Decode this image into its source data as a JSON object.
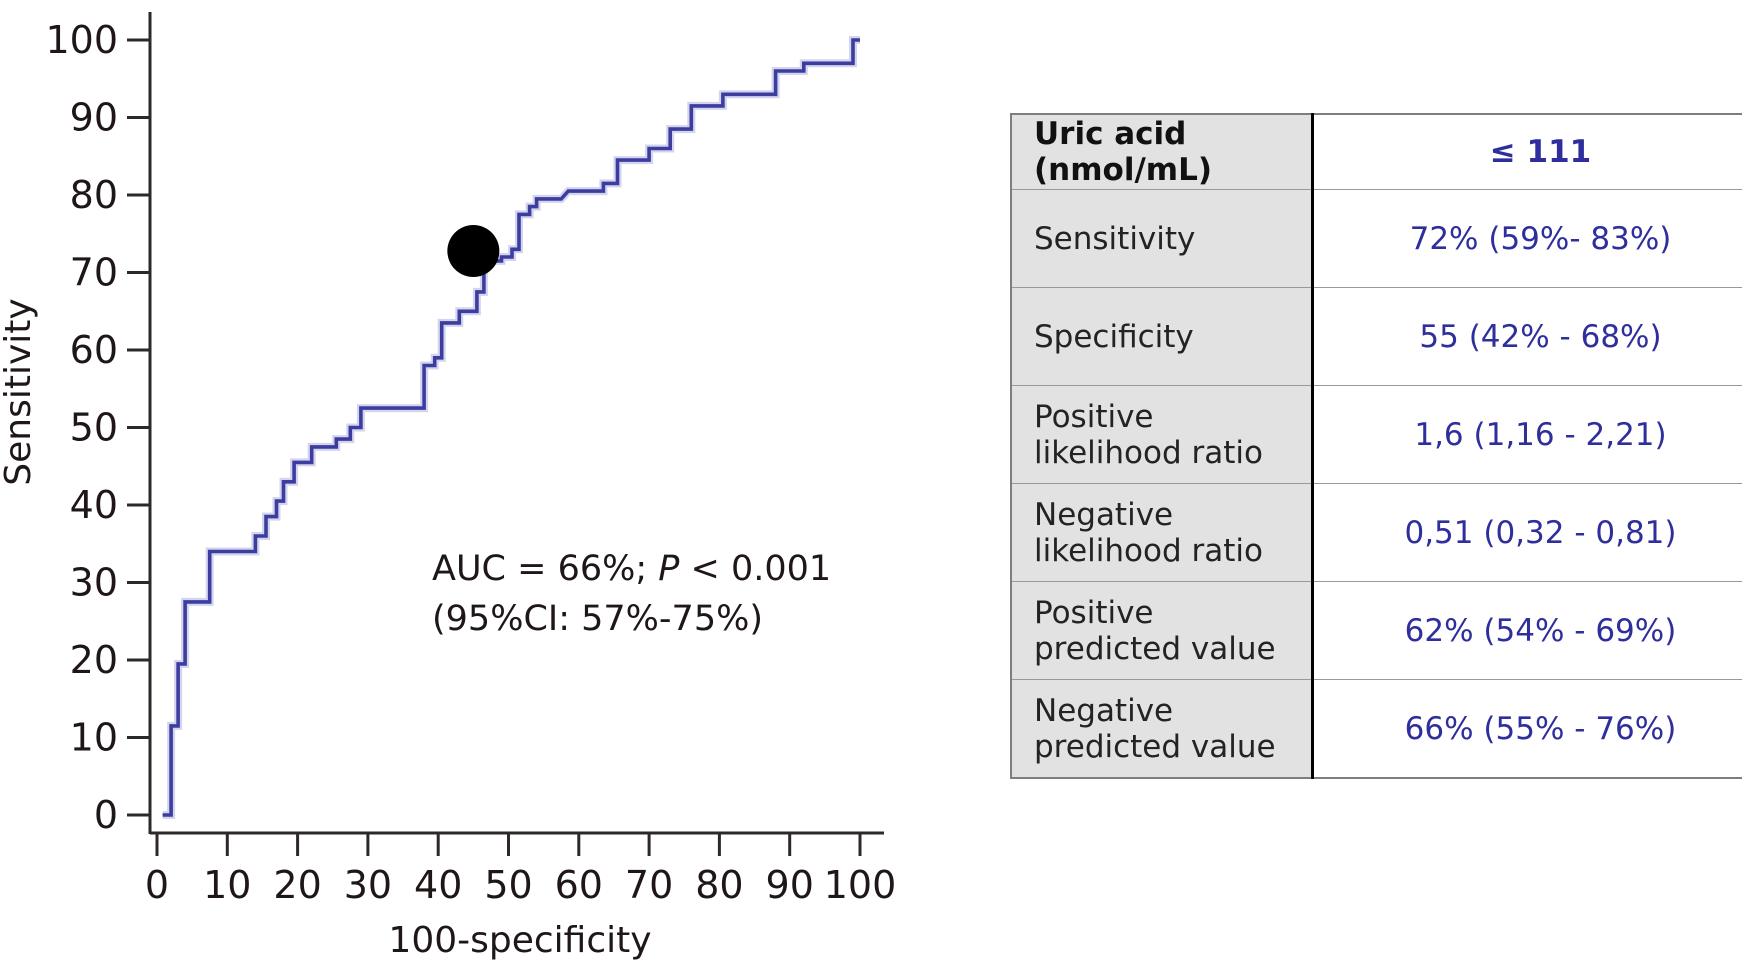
{
  "chart_data": {
    "type": "line",
    "subtype": "roc-curve",
    "title": "",
    "xlabel": "100-specificity",
    "ylabel": "Sensitivity",
    "xlim": [
      0,
      100
    ],
    "ylim": [
      0,
      100
    ],
    "grid": false,
    "legend_position": "none",
    "x_ticks": [
      0,
      10,
      20,
      30,
      40,
      50,
      60,
      70,
      80,
      90,
      100
    ],
    "y_ticks": [
      0,
      10,
      20,
      30,
      40,
      50,
      60,
      70,
      80,
      90,
      100
    ],
    "series": [
      {
        "name": "ROC curve",
        "color": "#3d3da0",
        "points": [
          [
            0.8,
            0
          ],
          [
            2,
            0
          ],
          [
            2,
            11.5
          ],
          [
            3,
            11.5
          ],
          [
            3,
            19.5
          ],
          [
            4,
            19.5
          ],
          [
            4,
            27.5
          ],
          [
            7.5,
            27.5
          ],
          [
            7.5,
            34
          ],
          [
            14,
            34
          ],
          [
            14,
            36
          ],
          [
            15.5,
            36
          ],
          [
            15.5,
            38.5
          ],
          [
            17,
            38.5
          ],
          [
            17,
            40.5
          ],
          [
            18,
            40.5
          ],
          [
            18,
            43
          ],
          [
            19.5,
            43
          ],
          [
            19.5,
            45.5
          ],
          [
            22,
            45.5
          ],
          [
            22,
            47.5
          ],
          [
            25.5,
            47.5
          ],
          [
            25.5,
            48.5
          ],
          [
            27.5,
            48.5
          ],
          [
            27.5,
            50
          ],
          [
            29,
            50
          ],
          [
            29,
            52.5
          ],
          [
            38,
            52.5
          ],
          [
            38,
            58
          ],
          [
            39.5,
            58
          ],
          [
            39.5,
            59
          ],
          [
            40.5,
            59
          ],
          [
            40.5,
            63.5
          ],
          [
            43,
            63.5
          ],
          [
            43,
            65
          ],
          [
            45.5,
            65
          ],
          [
            45.5,
            67.5
          ],
          [
            46.5,
            67.5
          ],
          [
            46.5,
            71.5
          ],
          [
            49,
            71.5
          ],
          [
            49,
            72
          ],
          [
            50.5,
            72
          ],
          [
            50.5,
            73
          ],
          [
            51.5,
            73
          ],
          [
            51.5,
            77.5
          ],
          [
            53,
            77.5
          ],
          [
            53,
            78.5
          ],
          [
            54,
            78.5
          ],
          [
            54,
            79.5
          ],
          [
            57.5,
            79.5
          ],
          [
            58.5,
            80.5
          ],
          [
            63.5,
            80.5
          ],
          [
            63.5,
            81.5
          ],
          [
            65.5,
            81.5
          ],
          [
            65.5,
            84.5
          ],
          [
            70,
            84.5
          ],
          [
            70,
            86
          ],
          [
            73,
            86
          ],
          [
            73,
            88.5
          ],
          [
            76,
            88.5
          ],
          [
            76,
            91.5
          ],
          [
            80.5,
            91.5
          ],
          [
            80.5,
            93
          ],
          [
            88,
            93
          ],
          [
            88,
            96
          ],
          [
            92,
            96
          ],
          [
            92,
            97
          ],
          [
            99,
            97
          ],
          [
            99,
            100
          ],
          [
            100,
            100
          ]
        ]
      }
    ],
    "operating_point": {
      "x": 45,
      "y": 72,
      "color": "#000000"
    },
    "annotation": {
      "prefix": "AUC = 66%; ",
      "p_italic": "P",
      "suffix": " < 0.001",
      "line2": "(95%CI: 57%-75%)"
    }
  },
  "table": {
    "header": {
      "label": "Uric acid (nmol/mL)",
      "value": "≤ 111"
    },
    "rows": [
      {
        "label": "Sensitivity",
        "value": "72% (59%- 83%)"
      },
      {
        "label": "Specificity",
        "value": "55 (42% - 68%)"
      },
      {
        "label": "Positive likelihood ratio",
        "value": "1,6 (1,16 - 2,21)"
      },
      {
        "label": "Negative likelihood ratio",
        "value": "0,51 (0,32 - 0,81)"
      },
      {
        "label": "Positive predicted value",
        "value": "62% (54% - 69%)"
      },
      {
        "label": "Negative predicted value",
        "value": "66% (55% - 76%)"
      }
    ]
  },
  "colors": {
    "curve": "#3d3da0",
    "marker": "#000000",
    "value_text": "#2e2e9c",
    "table_left_bg": "#e2e2e2",
    "axis": "#2e2929"
  }
}
